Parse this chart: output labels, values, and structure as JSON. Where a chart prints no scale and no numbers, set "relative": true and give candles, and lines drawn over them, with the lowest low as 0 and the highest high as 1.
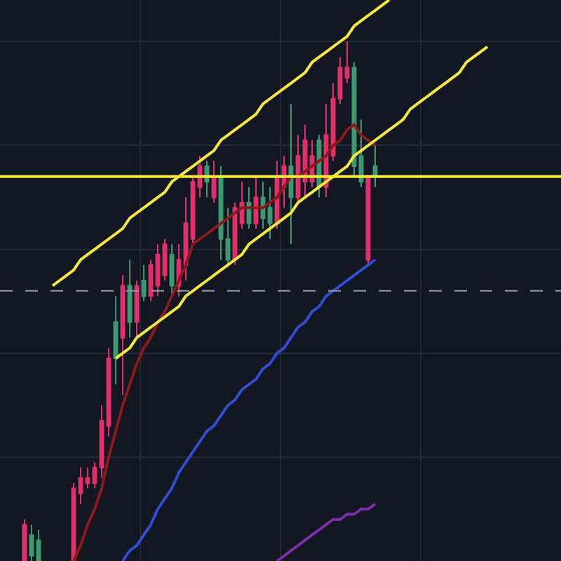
{
  "chart_data": {
    "type": "candlestick",
    "relative": true,
    "grid": true,
    "categories": [
      null,
      null,
      null,
      null,
      null,
      null,
      null,
      null,
      null,
      null,
      null,
      null,
      null,
      null,
      null,
      null,
      null,
      null,
      null,
      null,
      null,
      null,
      null,
      null,
      null,
      null,
      null,
      null,
      null,
      null,
      null,
      null,
      null,
      null,
      null,
      null,
      null,
      null,
      null,
      null,
      null,
      null,
      null,
      null,
      null,
      null,
      null,
      null,
      null,
      null,
      null,
      null,
      null,
      null,
      null,
      null,
      null,
      null,
      null,
      null,
      null,
      null,
      null,
      null,
      null,
      null,
      null,
      null,
      null,
      null,
      null,
      null,
      null,
      null,
      null,
      null,
      null,
      null,
      null,
      null
    ],
    "ohlc": [
      null,
      null,
      null,
      [
        0,
        0.08,
        0,
        0.07
      ],
      [
        0.05,
        0.07,
        0,
        0.01
      ],
      [
        0.04,
        0.06,
        0,
        0
      ],
      null,
      null,
      null,
      null,
      [
        0,
        0.15,
        0,
        0.14
      ],
      [
        0.13,
        0.18,
        0.11,
        0.16
      ],
      [
        0.15,
        0.18,
        0.14,
        0.16
      ],
      [
        0.15,
        0.19,
        0.14,
        0.18
      ],
      [
        0.18,
        0.3,
        0.16,
        0.27
      ],
      [
        0.26,
        0.41,
        0.24,
        0.39
      ],
      [
        0.46,
        0.51,
        0.34,
        0.39
      ],
      [
        0.43,
        0.55,
        0.32,
        0.53
      ],
      [
        0.53,
        0.58,
        0.43,
        0.46
      ],
      [
        0.46,
        0.54,
        0.43,
        0.53
      ],
      [
        0.54,
        0.57,
        0.5,
        0.51
      ],
      [
        0.51,
        0.58,
        0.5,
        0.57
      ],
      [
        0.53,
        0.61,
        0.51,
        0.59
      ],
      [
        0.55,
        0.62,
        0.54,
        0.61
      ],
      [
        0.59,
        0.61,
        0.51,
        0.53
      ],
      [
        0.53,
        0.61,
        0.51,
        0.58
      ],
      [
        0.57,
        0.7,
        0.54,
        0.65
      ],
      [
        0.62,
        0.74,
        0.61,
        0.73
      ],
      [
        0.72,
        0.78,
        0.7,
        0.76
      ],
      [
        0.76,
        0.77,
        0.7,
        0.73
      ],
      [
        0.7,
        0.77,
        0.69,
        0.74
      ],
      [
        0.74,
        0.76,
        0.58,
        0.62
      ],
      [
        0.62,
        0.68,
        0.57,
        0.58
      ],
      [
        0.58,
        0.69,
        0.57,
        0.68
      ],
      [
        0.65,
        0.73,
        0.64,
        0.69
      ],
      [
        0.69,
        0.72,
        0.64,
        0.65
      ],
      [
        0.65,
        0.74,
        0.64,
        0.7
      ],
      [
        0.7,
        0.73,
        0.64,
        0.66
      ],
      [
        0.68,
        0.72,
        0.62,
        0.65
      ],
      [
        0.65,
        0.77,
        0.64,
        0.74
      ],
      [
        0.72,
        0.78,
        0.68,
        0.76
      ],
      [
        0.76,
        0.88,
        0.61,
        0.7
      ],
      [
        0.7,
        0.82,
        0.69,
        0.78
      ],
      [
        0.73,
        0.84,
        0.7,
        0.81
      ],
      [
        0.73,
        0.81,
        0.72,
        0.78
      ],
      [
        0.81,
        0.82,
        0.7,
        0.72
      ],
      [
        0.72,
        0.88,
        0.7,
        0.82
      ],
      [
        0.78,
        0.92,
        0.77,
        0.89
      ],
      [
        0.89,
        0.97,
        0.88,
        0.95
      ],
      [
        0.93,
        1,
        0.92,
        0.95
      ],
      [
        0.95,
        0.96,
        0.74,
        0.76
      ],
      [
        0.78,
        0.85,
        0.72,
        0.73
      ],
      [
        0.58,
        0.74,
        0.57,
        0.74
      ],
      [
        0.76,
        0.8,
        0.72,
        0.74
      ],
      null,
      null,
      null,
      null,
      null,
      null,
      null,
      null,
      null,
      null,
      null,
      null,
      null,
      null,
      null,
      null,
      null,
      null,
      null,
      null,
      null,
      null,
      null,
      null,
      null,
      null
    ],
    "colors": [
      null,
      null,
      null,
      "#e0306a",
      "#3d9970",
      "#3d9970",
      null,
      null,
      null,
      null,
      "#e0306a",
      "#e0306a",
      "#e0306a",
      "#e0306a",
      "#e0306a",
      "#e0306a",
      "#3d9970",
      "#e0306a",
      "#3d9970",
      "#e0306a",
      "#3d9970",
      "#e0306a",
      "#e0306a",
      "#e0306a",
      "#3d9970",
      "#e0306a",
      "#e0306a",
      "#e0306a",
      "#e0306a",
      "#3d9970",
      "#e0306a",
      "#3d9970",
      "#3d9970",
      "#e0306a",
      "#e0306a",
      "#3d9970",
      "#e0306a",
      "#3d9970",
      "#3d9970",
      "#e0306a",
      "#e0306a",
      "#3d9970",
      "#e0306a",
      "#e0306a",
      "#e0306a",
      "#3d9970",
      "#e0306a",
      "#e0306a",
      "#e0306a",
      "#e0306a",
      "#3d9970",
      "#3d9970",
      "#e0306a",
      "#3d9970",
      null,
      null,
      null,
      null,
      null,
      null,
      null,
      null,
      null,
      null,
      null,
      null,
      null,
      null,
      null,
      null,
      null,
      null,
      null,
      null,
      null,
      null,
      null,
      null,
      null,
      null
    ],
    "series": [
      {
        "type": "line",
        "color": "#8b1a1a",
        "values": [
          null,
          null,
          null,
          null,
          null,
          null,
          null,
          null,
          null,
          null,
          0,
          0.03,
          0.07,
          0.1,
          0.14,
          0.2,
          0.25,
          0.3,
          0.34,
          0.38,
          0.41,
          0.43,
          0.46,
          0.48,
          0.51,
          0.54,
          0.57,
          0.61,
          0.62,
          0.63,
          0.64,
          0.65,
          0.66,
          0.67,
          0.68,
          0.68,
          0.68,
          0.68,
          0.69,
          0.7,
          0.72,
          0.74,
          0.74,
          0.75,
          0.76,
          0.77,
          0.78,
          0.8,
          0.81,
          0.83,
          0.84,
          0.82,
          0.81,
          0.8,
          null,
          null,
          null,
          null,
          null,
          null,
          null,
          null,
          null,
          null,
          null,
          null,
          null,
          null,
          null,
          null,
          null,
          null,
          null,
          null,
          null,
          null,
          null,
          null,
          null,
          null
        ]
      },
      {
        "type": "line",
        "color": "#2f4fd0",
        "values": [
          null,
          null,
          null,
          null,
          null,
          null,
          null,
          null,
          null,
          null,
          null,
          null,
          null,
          null,
          null,
          null,
          null,
          0,
          0.02,
          0.03,
          0.05,
          0.07,
          0.1,
          0.12,
          0.14,
          0.17,
          0.19,
          0.21,
          0.23,
          0.25,
          0.26,
          0.28,
          0.3,
          0.31,
          0.33,
          0.34,
          0.35,
          0.37,
          0.38,
          0.4,
          0.41,
          0.43,
          0.45,
          0.46,
          0.48,
          0.49,
          0.51,
          0.52,
          0.53,
          0.54,
          0.55,
          0.56,
          0.57,
          0.58,
          null,
          null,
          null,
          null,
          null,
          null,
          null,
          null,
          null,
          null,
          null,
          null,
          null,
          null,
          null,
          null,
          null,
          null,
          null,
          null,
          null,
          null,
          null,
          null,
          null,
          null
        ]
      },
      {
        "type": "line",
        "color": "#7b2fa8",
        "values": [
          null,
          null,
          null,
          null,
          null,
          null,
          null,
          null,
          null,
          null,
          null,
          null,
          null,
          null,
          null,
          null,
          null,
          null,
          null,
          null,
          null,
          null,
          null,
          null,
          null,
          null,
          null,
          null,
          null,
          null,
          null,
          null,
          null,
          null,
          null,
          null,
          null,
          null,
          null,
          0,
          0.01,
          0.02,
          0.03,
          0.04,
          0.05,
          0.06,
          0.07,
          0.08,
          0.08,
          0.09,
          0.09,
          0.1,
          0.1,
          0.11,
          null,
          null,
          null,
          null,
          null,
          null,
          null,
          null,
          null,
          null,
          null,
          null,
          null,
          null,
          null,
          null,
          null,
          null,
          null,
          null,
          null,
          null,
          null,
          null,
          null,
          null
        ]
      },
      {
        "type": "line",
        "color": "#f5e93b",
        "values": [
          null,
          null,
          null,
          null,
          null,
          null,
          null,
          0.53,
          0.54,
          0.55,
          0.56,
          0.58,
          0.59,
          0.6,
          0.61,
          0.62,
          0.63,
          0.64,
          0.66,
          0.67,
          0.68,
          0.69,
          0.7,
          0.71,
          0.73,
          0.74,
          0.75,
          0.76,
          0.77,
          0.78,
          0.79,
          0.81,
          0.82,
          0.83,
          0.84,
          0.85,
          0.86,
          0.88,
          0.89,
          0.9,
          0.91,
          0.92,
          0.93,
          0.94,
          0.96,
          0.97,
          0.98,
          0.99,
          1,
          1.01,
          1.03,
          1.04,
          1.05,
          1.06,
          1.07,
          1.08,
          null,
          null,
          null,
          null,
          null,
          null,
          null,
          null,
          null,
          null,
          null,
          null,
          null,
          null,
          null,
          null,
          null,
          null,
          null,
          null,
          null,
          null,
          null,
          null
        ]
      },
      {
        "type": "line",
        "color": "#f5e93b",
        "values": [
          null,
          null,
          null,
          null,
          null,
          null,
          null,
          null,
          null,
          null,
          null,
          null,
          null,
          null,
          null,
          null,
          0.39,
          0.4,
          0.41,
          0.43,
          0.44,
          0.45,
          0.46,
          0.47,
          0.48,
          0.49,
          0.51,
          0.52,
          0.53,
          0.54,
          0.55,
          0.56,
          0.57,
          0.58,
          0.59,
          0.61,
          0.62,
          0.63,
          0.64,
          0.65,
          0.66,
          0.67,
          0.69,
          0.7,
          0.71,
          0.72,
          0.73,
          0.74,
          0.75,
          0.76,
          0.78,
          0.79,
          0.8,
          0.81,
          0.82,
          0.83,
          0.84,
          0.85,
          0.87,
          0.88,
          0.89,
          0.9,
          0.91,
          0.92,
          0.93,
          0.94,
          0.96,
          0.97,
          0.98,
          0.99,
          null,
          null,
          null,
          null,
          null,
          null,
          null,
          null,
          null,
          null
        ]
      }
    ],
    "ref_lines": [
      {
        "axis": "y",
        "value": 0.74,
        "color": "#f5e93b",
        "line_style": "solid"
      },
      {
        "axis": "y",
        "value": 0.52,
        "color": "#9598a1",
        "line_style": "dashed"
      }
    ]
  }
}
